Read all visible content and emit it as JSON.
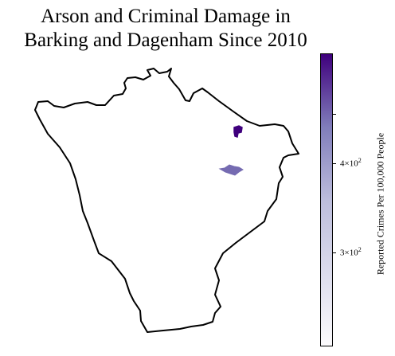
{
  "title": {
    "line1": "Arson and Criminal Damage in",
    "line2": "Barking and Dagenham Since 2010"
  },
  "colorbar": {
    "label": "Reported Crimes Per 100,000 People",
    "scale": "log",
    "colormap": "purples",
    "ticks": [
      {
        "base": "4×10",
        "exp": "2",
        "value": 400
      },
      {
        "base": "3×10",
        "exp": "2",
        "value": 300
      }
    ]
  },
  "map": {
    "region": "Barking and Dagenham",
    "boundary_color": "#000000",
    "fill_color": "#ffffff",
    "highlighted_areas": [
      {
        "color": "#3f007d",
        "level": "high"
      },
      {
        "color": "#756bb1",
        "level": "medium"
      }
    ]
  }
}
